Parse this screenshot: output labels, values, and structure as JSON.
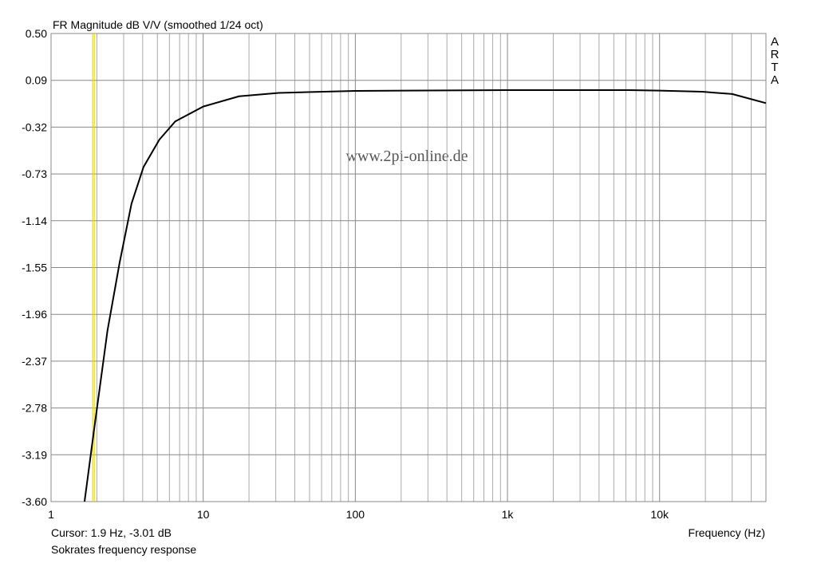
{
  "chart_data": {
    "type": "line",
    "title": "FR Magnitude dB V/V (smoothed 1/24 oct)",
    "x_label": "Frequency (Hz)",
    "logo": [
      "A",
      "R",
      "T",
      "A"
    ],
    "watermark": "www.2pi-online.de",
    "cursor": {
      "x": 1.9,
      "label": "Cursor: 1.9 Hz, -3.01 dB",
      "color": "#e0d000"
    },
    "footer": "Sokrates frequency response",
    "x_scale": "log",
    "grid": true,
    "xlim": [
      1,
      50000
    ],
    "ylim": [
      -3.6,
      0.5
    ],
    "xticks": [
      1,
      10,
      100,
      {
        "value": 1000,
        "label": "1k"
      },
      {
        "value": 10000,
        "label": "10k"
      }
    ],
    "xminorticks": [
      2,
      3,
      4,
      5,
      6,
      7,
      8,
      9,
      20,
      30,
      40,
      50,
      60,
      70,
      80,
      90,
      200,
      300,
      400,
      500,
      600,
      700,
      800,
      900,
      2000,
      3000,
      4000,
      5000,
      6000,
      7000,
      8000,
      9000,
      20000,
      30000,
      40000
    ],
    "yticks": [
      {
        "value": 0.5,
        "label": "0.50"
      },
      0.09,
      -0.32,
      -0.73,
      -1.14,
      -1.55,
      -1.96,
      -2.37,
      -2.78,
      -3.19,
      {
        "value": -3.6,
        "label": "-3.60"
      }
    ],
    "series": [
      {
        "name": "Sokrates",
        "color": "#000000",
        "x": [
          1.66,
          1.9,
          2.35,
          2.82,
          3.38,
          4.05,
          5.15,
          6.55,
          10,
          17.2,
          31.4,
          100,
          1000,
          6300,
          10000,
          19000,
          30000,
          50000
        ],
        "values": [
          -3.6,
          -3.01,
          -2.1,
          -1.51,
          -0.99,
          -0.67,
          -0.43,
          -0.27,
          -0.14,
          -0.05,
          -0.02,
          -0.003,
          0.004,
          0.004,
          0,
          -0.01,
          -0.03,
          -0.11
        ]
      }
    ]
  }
}
